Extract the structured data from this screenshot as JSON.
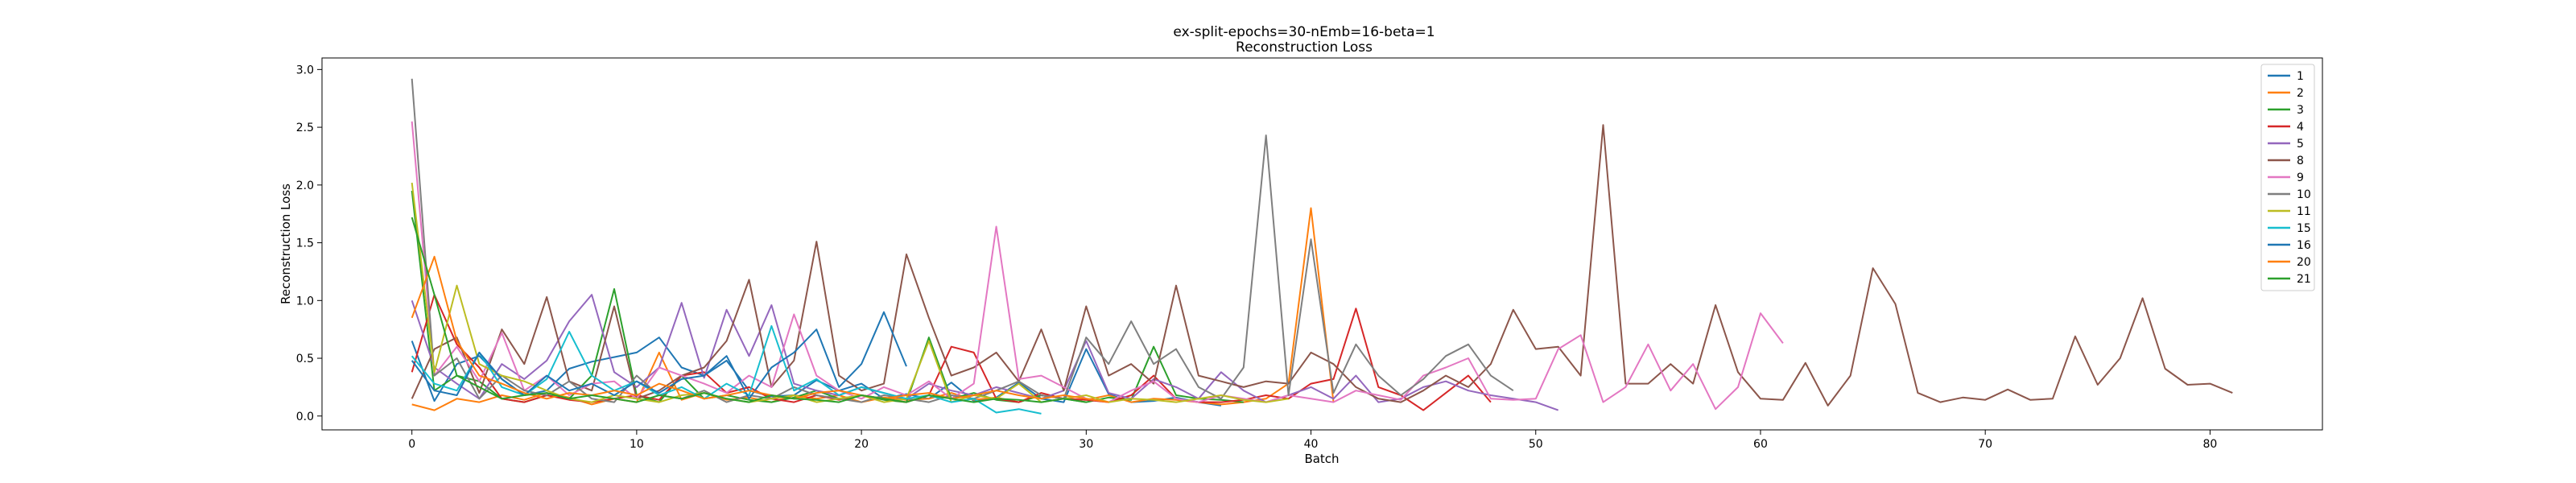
{
  "chart_data": {
    "type": "line",
    "title": "ex-split-epochs=30-nEmb=16-beta=1",
    "subtitle": "Reconstruction Loss",
    "xlabel": "Batch",
    "ylabel": "Reconstruction Loss",
    "xlim": [
      -4,
      85
    ],
    "ylim": [
      -0.12,
      3.1
    ],
    "xticks": [
      0,
      10,
      20,
      30,
      40,
      50,
      60,
      70,
      80
    ],
    "yticks": [
      0.0,
      0.5,
      1.0,
      1.5,
      2.0,
      2.5,
      3.0
    ],
    "grid": false,
    "legend_position": "top-right",
    "series": [
      {
        "name": "1",
        "color": "#1f77b4",
        "values": [
          0.65,
          0.13,
          0.45,
          0.52,
          0.32,
          0.18,
          0.22,
          0.41,
          0.47,
          0.51,
          0.55,
          0.68,
          0.42,
          0.35,
          0.48,
          0.22,
          0.17,
          0.18,
          0.31,
          0.22,
          0.28,
          0.15,
          0.19,
          0.15,
          0.29,
          0.13,
          0.16,
          0.29,
          0.15,
          0.12,
          0.58,
          0.19,
          0.12,
          0.13,
          0.16,
          0.12,
          0.09
        ]
      },
      {
        "name": "2",
        "color": "#ff7f0e",
        "values": [
          0.1,
          0.05,
          0.15,
          0.12,
          0.18,
          0.14,
          0.2,
          0.16,
          0.1,
          0.15,
          0.12,
          0.55,
          0.14,
          0.2,
          0.14,
          0.16,
          0.12,
          0.18,
          0.15,
          0.18,
          0.12,
          0.16,
          0.14,
          0.15,
          0.2,
          0.14,
          0.16,
          0.12,
          0.18,
          0.15,
          0.14,
          0.18,
          0.12,
          0.15,
          0.14,
          0.12,
          0.1,
          0.12,
          0.15,
          0.28,
          1.8,
          0.12
        ]
      },
      {
        "name": "3",
        "color": "#2ca02c",
        "values": [
          1.95,
          0.22,
          0.35,
          0.3,
          0.15,
          0.12,
          0.18,
          0.15,
          0.35,
          1.1,
          0.18,
          0.12,
          0.35,
          0.15,
          0.18,
          0.14,
          0.12,
          0.16,
          0.22,
          0.15,
          0.18,
          0.14,
          0.12,
          0.68,
          0.15,
          0.2,
          0.14,
          0.12,
          0.18,
          0.15,
          0.12,
          0.16,
          0.14,
          0.6,
          0.18,
          0.15,
          0.14,
          0.12
        ]
      },
      {
        "name": "4",
        "color": "#d62728",
        "values": [
          0.38,
          1.05,
          0.62,
          0.42,
          0.15,
          0.12,
          0.18,
          0.14,
          0.12,
          0.15,
          0.18,
          0.14,
          0.35,
          0.38,
          0.2,
          0.25,
          0.15,
          0.12,
          0.18,
          0.14,
          0.18,
          0.15,
          0.12,
          0.18,
          0.6,
          0.55,
          0.15,
          0.12,
          0.2,
          0.15,
          0.14,
          0.12,
          0.18,
          0.35,
          0.15,
          0.12,
          0.12,
          0.14,
          0.18,
          0.15,
          0.28,
          0.32,
          0.93,
          0.25,
          0.18,
          0.05,
          0.2,
          0.35,
          0.12
        ]
      },
      {
        "name": "5",
        "color": "#9467bd",
        "values": [
          1.0,
          0.42,
          0.28,
          0.15,
          0.45,
          0.32,
          0.48,
          0.82,
          1.05,
          0.38,
          0.25,
          0.42,
          0.98,
          0.33,
          0.92,
          0.52,
          0.96,
          0.28,
          0.22,
          0.18,
          0.25,
          0.2,
          0.15,
          0.28,
          0.22,
          0.18,
          0.25,
          0.2,
          0.15,
          0.22,
          0.65,
          0.2,
          0.15,
          0.32,
          0.25,
          0.15,
          0.38,
          0.22,
          0.12,
          0.18,
          0.25,
          0.15,
          0.35,
          0.12,
          0.15,
          0.25,
          0.3,
          0.22,
          0.18,
          0.15,
          0.12,
          0.05
        ]
      },
      {
        "name": "8",
        "color": "#8c564b",
        "values": [
          0.15,
          0.58,
          0.68,
          0.2,
          0.75,
          0.45,
          1.03,
          0.3,
          0.22,
          0.95,
          0.15,
          0.22,
          0.35,
          0.42,
          0.65,
          1.18,
          0.25,
          0.48,
          1.51,
          0.35,
          0.22,
          0.28,
          1.4,
          0.85,
          0.35,
          0.42,
          0.55,
          0.3,
          0.75,
          0.22,
          0.95,
          0.35,
          0.45,
          0.28,
          1.13,
          0.35,
          0.3,
          0.25,
          0.3,
          0.28,
          0.55,
          0.45,
          0.25,
          0.15,
          0.12,
          0.22,
          0.35,
          0.25,
          0.45,
          0.92,
          0.58,
          0.6,
          0.35,
          2.52,
          0.28,
          0.28,
          0.45,
          0.28,
          0.96,
          0.38,
          0.15,
          0.14,
          0.46,
          0.09,
          0.35,
          1.28,
          0.97,
          0.2,
          0.12,
          0.16,
          0.14,
          0.23,
          0.14,
          0.15,
          0.69,
          0.27,
          0.5,
          1.02,
          0.41,
          0.27,
          0.28,
          0.2
        ]
      },
      {
        "name": "9",
        "color": "#e377c2",
        "values": [
          2.55,
          0.35,
          0.6,
          0.3,
          0.72,
          0.22,
          0.35,
          0.18,
          0.28,
          0.3,
          0.15,
          0.42,
          0.35,
          0.28,
          0.2,
          0.35,
          0.25,
          0.88,
          0.35,
          0.22,
          0.15,
          0.25,
          0.18,
          0.3,
          0.15,
          0.28,
          1.64,
          0.32,
          0.35,
          0.25,
          0.15,
          0.12,
          0.22,
          0.3,
          0.15,
          0.12,
          0.18,
          0.15,
          0.12,
          0.18,
          0.15,
          0.12,
          0.22,
          0.18,
          0.14,
          0.35,
          0.42,
          0.5,
          0.15,
          0.14,
          0.15,
          0.58,
          0.7,
          0.12,
          0.25,
          0.62,
          0.22,
          0.45,
          0.06,
          0.25,
          0.89,
          0.63
        ]
      },
      {
        "name": "10",
        "color": "#7f7f7f",
        "values": [
          2.92,
          0.35,
          0.5,
          0.15,
          0.35,
          0.22,
          0.18,
          0.3,
          0.15,
          0.12,
          0.35,
          0.18,
          0.15,
          0.22,
          0.12,
          0.18,
          0.15,
          0.25,
          0.18,
          0.15,
          0.12,
          0.18,
          0.15,
          0.12,
          0.18,
          0.15,
          0.22,
          0.3,
          0.18,
          0.15,
          0.68,
          0.45,
          0.82,
          0.45,
          0.58,
          0.25,
          0.15,
          0.42,
          2.43,
          0.18,
          1.53,
          0.2,
          0.62,
          0.35,
          0.18,
          0.32,
          0.52,
          0.62,
          0.35,
          0.22
        ]
      },
      {
        "name": "11",
        "color": "#bcbd22",
        "values": [
          2.02,
          0.38,
          1.13,
          0.45,
          0.35,
          0.3,
          0.22,
          0.15,
          0.12,
          0.18,
          0.15,
          0.12,
          0.18,
          0.2,
          0.15,
          0.12,
          0.15,
          0.18,
          0.12,
          0.15,
          0.18,
          0.12,
          0.15,
          0.65,
          0.12,
          0.18,
          0.15,
          0.28,
          0.12,
          0.15,
          0.18,
          0.12,
          0.15,
          0.14,
          0.12,
          0.15,
          0.18,
          0.14,
          0.12,
          0.15
        ]
      },
      {
        "name": "15",
        "color": "#17becf",
        "values": [
          0.52,
          0.28,
          0.22,
          0.55,
          0.25,
          0.18,
          0.32,
          0.73,
          0.35,
          0.22,
          0.3,
          0.18,
          0.25,
          0.15,
          0.28,
          0.18,
          0.78,
          0.22,
          0.32,
          0.18,
          0.25,
          0.2,
          0.15,
          0.18,
          0.12,
          0.15,
          0.03,
          0.06,
          0.02
        ]
      },
      {
        "name": "16",
        "color": "#1f77b4",
        "values": [
          0.48,
          0.22,
          0.18,
          0.55,
          0.32,
          0.18,
          0.35,
          0.22,
          0.28,
          0.18,
          0.3,
          0.2,
          0.32,
          0.35,
          0.52,
          0.15,
          0.42,
          0.55,
          0.75,
          0.25,
          0.45,
          0.9,
          0.43
        ]
      },
      {
        "name": "20",
        "color": "#ff7f0e",
        "values": [
          0.85,
          1.38,
          0.65,
          0.35,
          0.28,
          0.2,
          0.15,
          0.2,
          0.18,
          0.22,
          0.18,
          0.28,
          0.22,
          0.15,
          0.18,
          0.22,
          0.18,
          0.15,
          0.2,
          0.22,
          0.18,
          0.15,
          0.18,
          0.2,
          0.15,
          0.18,
          0.22,
          0.18,
          0.15,
          0.18,
          0.15,
          0.12
        ]
      },
      {
        "name": "21",
        "color": "#2ca02c",
        "values": [
          1.72,
          1.05,
          0.35,
          0.25,
          0.15,
          0.18,
          0.2,
          0.15,
          0.18,
          0.15,
          0.12,
          0.18,
          0.15,
          0.2,
          0.15,
          0.12,
          0.18,
          0.15,
          0.14,
          0.12,
          0.18,
          0.15,
          0.12,
          0.18,
          0.15,
          0.12,
          0.15,
          0.14,
          0.12,
          0.15,
          0.12
        ]
      }
    ]
  }
}
